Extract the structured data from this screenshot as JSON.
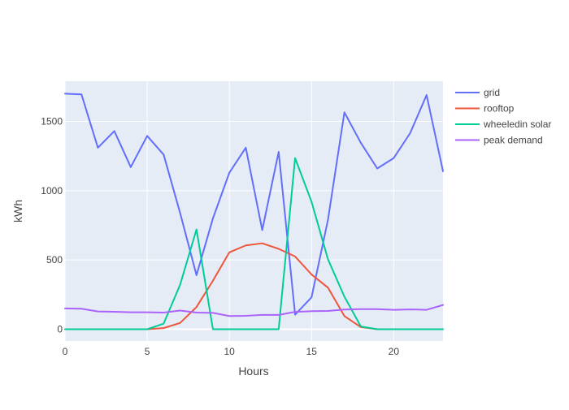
{
  "chart_data": {
    "type": "line",
    "title": "",
    "xlabel": "Hours",
    "ylabel": "kWh",
    "xlim": [
      0,
      23
    ],
    "ylim": [
      -85,
      1790
    ],
    "xticks": [
      0,
      5,
      10,
      15,
      20
    ],
    "yticks": [
      0,
      500,
      1000,
      1500
    ],
    "grid": true,
    "plot_background": "#E5ECF6",
    "legend_position": "right",
    "x": [
      0,
      1,
      2,
      3,
      4,
      5,
      6,
      7,
      8,
      9,
      10,
      11,
      12,
      13,
      14,
      15,
      16,
      17,
      18,
      19,
      20,
      21,
      22,
      23
    ],
    "series": [
      {
        "name": "grid",
        "color": "#636EFA",
        "values": [
          1700,
          1695,
          1310,
          1430,
          1170,
          1395,
          1260,
          840,
          390,
          800,
          1130,
          1310,
          715,
          1280,
          105,
          230,
          790,
          1565,
          1345,
          1160,
          1235,
          1415,
          1690,
          1140
        ]
      },
      {
        "name": "rooftop",
        "color": "#EF553B",
        "values": [
          0,
          0,
          0,
          0,
          0,
          0,
          8,
          45,
          160,
          350,
          555,
          605,
          620,
          580,
          525,
          395,
          300,
          95,
          15,
          0,
          0,
          0,
          0,
          0
        ]
      },
      {
        "name": "wheeledin solar",
        "color": "#00CC96",
        "values": [
          0,
          0,
          0,
          0,
          0,
          0,
          40,
          320,
          720,
          0,
          0,
          0,
          0,
          0,
          1235,
          920,
          505,
          235,
          20,
          0,
          0,
          0,
          0,
          0
        ]
      },
      {
        "name": "peak demand",
        "color": "#AB63FA",
        "values": [
          150,
          148,
          128,
          126,
          122,
          122,
          120,
          135,
          120,
          118,
          95,
          97,
          103,
          103,
          125,
          130,
          132,
          142,
          145,
          145,
          140,
          143,
          140,
          175
        ]
      }
    ]
  }
}
